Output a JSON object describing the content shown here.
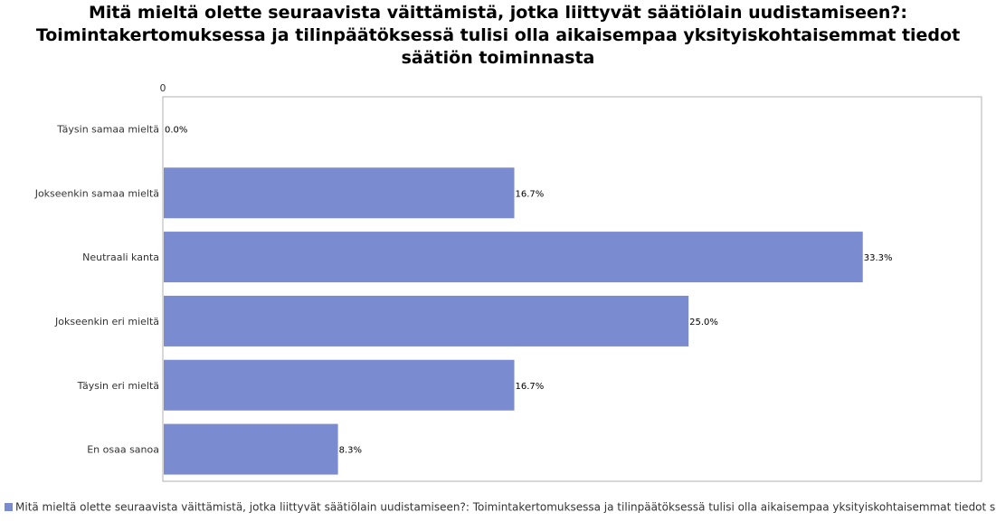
{
  "title_lines": [
    "Mitä mieltä olette seuraavista väittämistä, jotka liittyvät säätiölain uudistamiseen?:",
    "Toimintakertomuksessa ja tilinpäätöksessä tulisi olla aikaisempaa yksityiskohtaisemmat tiedot",
    "säätiön toiminnasta"
  ],
  "colors": {
    "bar": "#7b8bcf",
    "frame": "#b0b0b0"
  },
  "legend": {
    "label": "Mitä mieltä olette seuraavista väittämistä, jotka liittyvät säätiölain uudistamiseen?: Toimintakertomuksessa ja tilinpäätöksessä tulisi olla aikaisempaa yksityiskohtaisemmat tiedot säätiön toiminnasta"
  },
  "chart_data": {
    "type": "bar",
    "orientation": "horizontal",
    "axis_tick_label": "0",
    "categories": [
      "Täysin samaa mieltä",
      "Jokseenkin samaa mieltä",
      "Neutraali kanta",
      "Jokseenkin eri mieltä",
      "Täysin eri mieltä",
      "En osaa sanoa"
    ],
    "values": [
      0.0,
      16.7,
      33.3,
      25.0,
      16.7,
      8.3
    ],
    "value_labels": [
      "0.0%",
      "16.7%",
      "33.3%",
      "25.0%",
      "16.7%",
      "8.3%"
    ],
    "xlim": [
      0,
      39
    ],
    "grid": false,
    "legend_position": "bottom"
  }
}
